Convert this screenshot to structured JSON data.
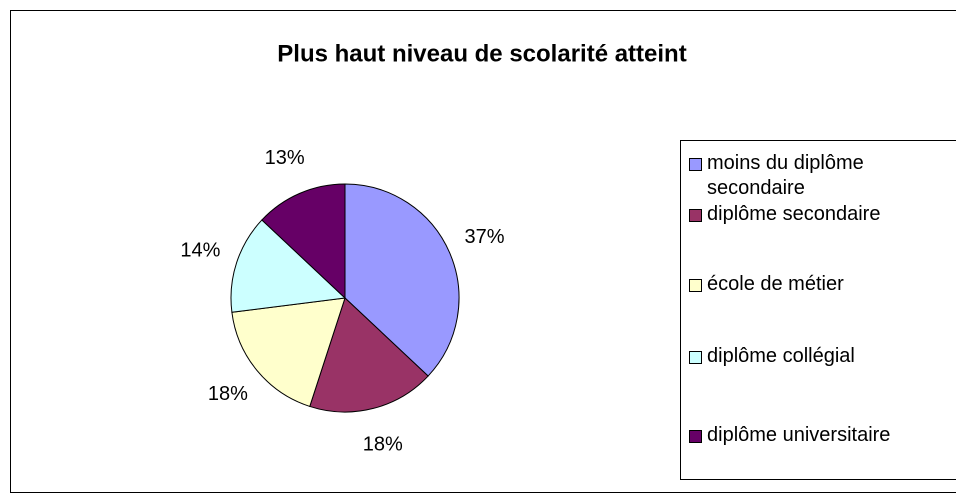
{
  "chart_data": {
    "type": "pie",
    "title": "Plus haut niveau de scolarité atteint",
    "categories": [
      "moins du diplôme secondaire",
      "diplôme secondaire",
      "école de métier",
      "diplôme collégial",
      "diplôme universitaire"
    ],
    "values": [
      37,
      18,
      18,
      14,
      13
    ],
    "value_labels": [
      "37%",
      "18%",
      "18%",
      "14%",
      "13%"
    ],
    "colors": [
      "#9999ff",
      "#993366",
      "#ffffcc",
      "#ccffff",
      "#660066"
    ],
    "legend": "right"
  }
}
